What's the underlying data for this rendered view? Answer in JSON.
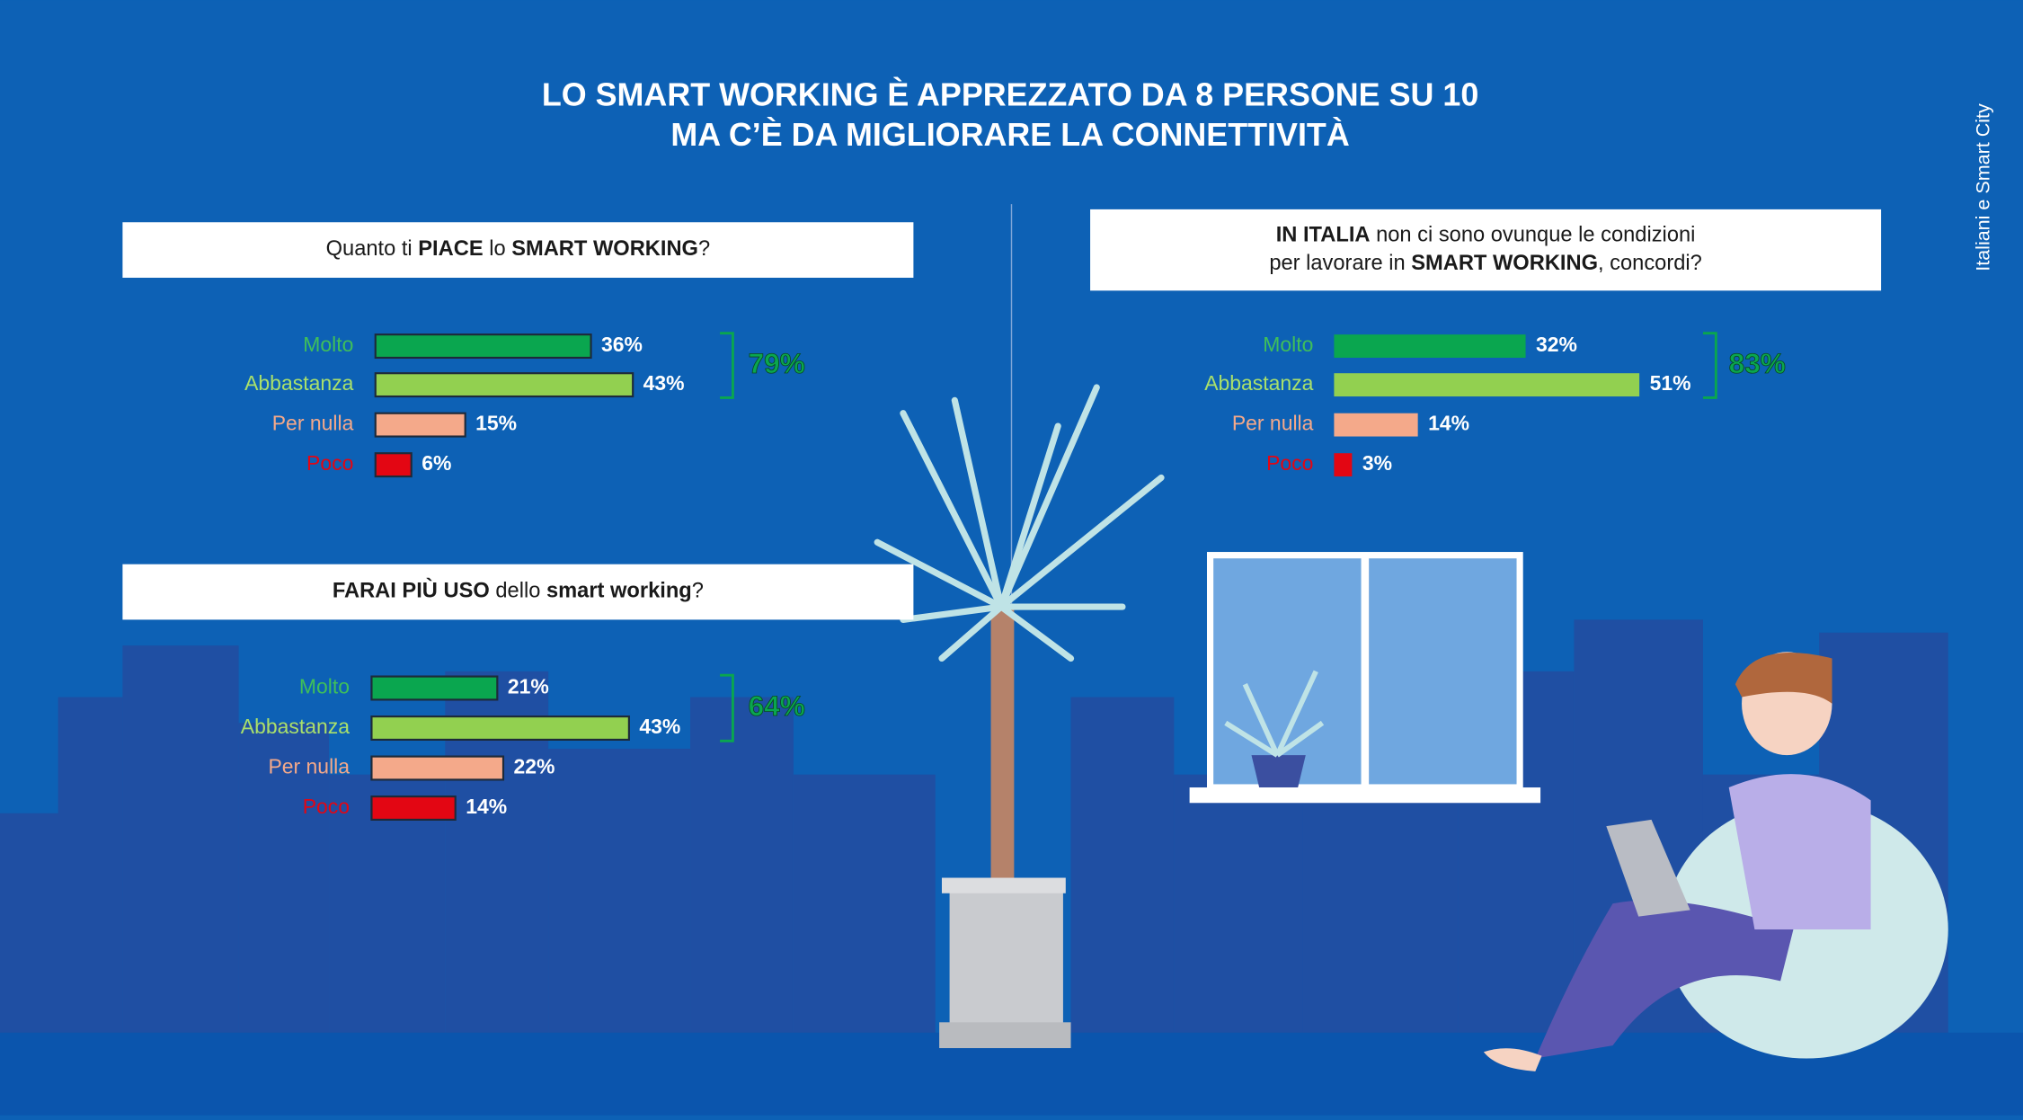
{
  "header": {
    "title_lines": [
      "LO SMART WORKING È APPREZZATO DA 8 PERSONE SU 10",
      "MA C’È DA MIGLIORARE LA CONNETTIVITÀ"
    ],
    "side_text": "Italiani e Smart City"
  },
  "chart_data": [
    {
      "type": "bar",
      "orientation": "horizontal",
      "title_lines": [
        [
          {
            "text": "Quanto ti ",
            "bold": false
          },
          {
            "text": "PIACE",
            "bold": true
          },
          {
            "text": " lo ",
            "bold": false
          },
          {
            "text": "SMART WORKING",
            "bold": true
          },
          {
            "text": "?",
            "bold": false
          }
        ]
      ],
      "categories": [
        "Molto",
        "Abbastanza",
        "Per nulla",
        "Poco"
      ],
      "values": [
        36,
        43,
        15,
        6
      ],
      "value_labels": [
        "36%",
        "43%",
        "15%",
        "6%"
      ],
      "colors": [
        "#0aa64f",
        "#92d050",
        "#f4a98a",
        "#e30613"
      ],
      "label_colors": [
        "#3fbf5a",
        "#a9e06b",
        "#f4a98a",
        "#e30613"
      ],
      "annotation": "79%"
    },
    {
      "type": "bar",
      "orientation": "horizontal",
      "title_lines": [
        [
          {
            "text": "IN ITALIA",
            "bold": true
          },
          {
            "text": " non ci sono ovunque le condizioni",
            "bold": false
          }
        ],
        [
          {
            "text": "per lavorare in ",
            "bold": false
          },
          {
            "text": "SMART WORKING",
            "bold": true
          },
          {
            "text": ", concordi?",
            "bold": false
          }
        ]
      ],
      "categories": [
        "Molto",
        "Abbastanza",
        "Per nulla",
        "Poco"
      ],
      "values": [
        32,
        51,
        14,
        3
      ],
      "value_labels": [
        "32%",
        "51%",
        "14%",
        "3%"
      ],
      "colors": [
        "#0aa64f",
        "#92d050",
        "#f4a98a",
        "#e30613"
      ],
      "label_colors": [
        "#3fbf5a",
        "#a9e06b",
        "#f4a98a",
        "#e30613"
      ],
      "annotation": "83%"
    },
    {
      "type": "bar",
      "orientation": "horizontal",
      "title_lines": [
        [
          {
            "text": "FARAI PIÙ USO",
            "bold": true
          },
          {
            "text": " dello ",
            "bold": false
          },
          {
            "text": "smart working",
            "bold": true
          },
          {
            "text": "?",
            "bold": false
          }
        ]
      ],
      "categories": [
        "Molto",
        "Abbastanza",
        "Per nulla",
        "Poco"
      ],
      "values": [
        21,
        43,
        22,
        14
      ],
      "value_labels": [
        "21%",
        "43%",
        "22%",
        "14%"
      ],
      "colors": [
        "#0aa64f",
        "#92d050",
        "#f4a98a",
        "#e30613"
      ],
      "label_colors": [
        "#3fbf5a",
        "#a9e06b",
        "#f4a98a",
        "#e30613"
      ],
      "annotation": "64%"
    }
  ]
}
